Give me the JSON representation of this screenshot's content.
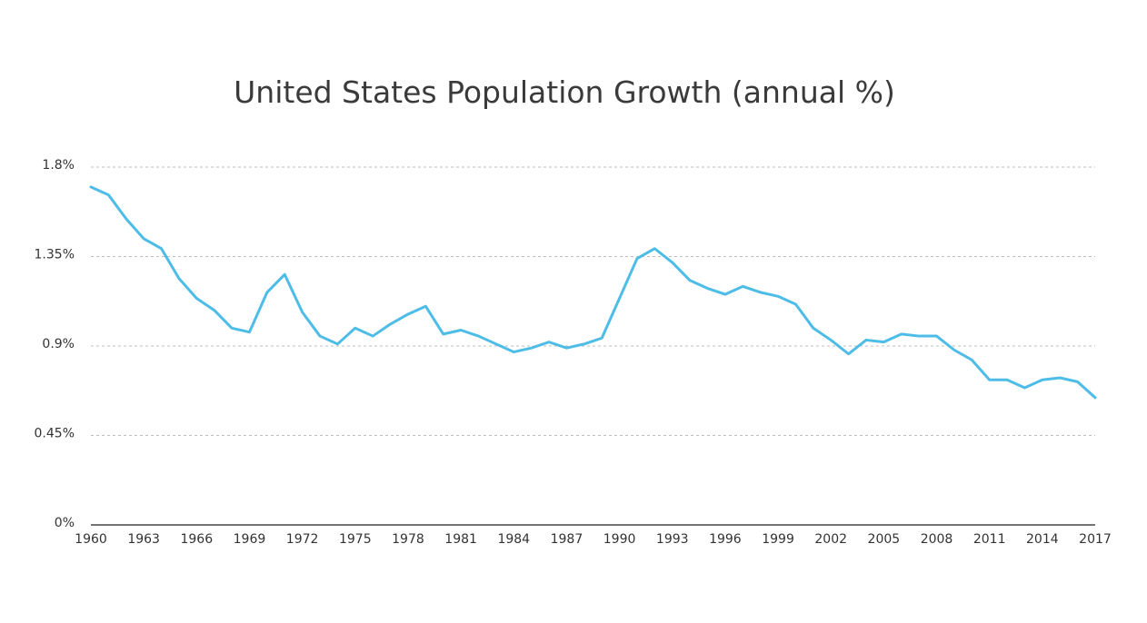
{
  "chart_data": {
    "type": "line",
    "title": "United States Population Growth (annual %)",
    "xlabel": "",
    "ylabel": "",
    "ylim": [
      0,
      1.8
    ],
    "xlim": [
      1960,
      2017
    ],
    "y_ticks": [
      "0%",
      "0.45%",
      "0.9%",
      "1.35%",
      "1.8%"
    ],
    "y_tick_values": [
      0,
      0.45,
      0.9,
      1.35,
      1.8
    ],
    "x_ticks": [
      "1960",
      "1963",
      "1966",
      "1969",
      "1972",
      "1975",
      "1978",
      "1981",
      "1984",
      "1987",
      "1990",
      "1993",
      "1996",
      "1999",
      "2002",
      "2005",
      "2008",
      "2011",
      "2014",
      "2017"
    ],
    "x_tick_values": [
      1960,
      1963,
      1966,
      1969,
      1972,
      1975,
      1978,
      1981,
      1984,
      1987,
      1990,
      1993,
      1996,
      1999,
      2002,
      2005,
      2008,
      2011,
      2014,
      2017
    ],
    "grid": "horizontal dashed",
    "legend": "none",
    "series": [
      {
        "color": "#4dbde8",
        "x": [
          1960,
          1961,
          1962,
          1963,
          1964,
          1965,
          1966,
          1967,
          1968,
          1969,
          1970,
          1971,
          1972,
          1973,
          1974,
          1975,
          1976,
          1977,
          1978,
          1979,
          1980,
          1981,
          1982,
          1983,
          1984,
          1985,
          1986,
          1987,
          1988,
          1989,
          1990,
          1991,
          1992,
          1993,
          1994,
          1995,
          1996,
          1997,
          1998,
          1999,
          2000,
          2001,
          2002,
          2003,
          2004,
          2005,
          2006,
          2007,
          2008,
          2009,
          2010,
          2011,
          2012,
          2013,
          2014,
          2015,
          2016,
          2017
        ],
        "values": [
          1.7,
          1.66,
          1.54,
          1.44,
          1.39,
          1.24,
          1.14,
          1.08,
          0.99,
          0.97,
          1.17,
          1.26,
          1.07,
          0.95,
          0.91,
          0.99,
          0.95,
          1.01,
          1.06,
          1.1,
          0.96,
          0.98,
          0.95,
          0.91,
          0.87,
          0.89,
          0.92,
          0.89,
          0.91,
          0.94,
          1.14,
          1.34,
          1.39,
          1.32,
          1.23,
          1.19,
          1.16,
          1.2,
          1.17,
          1.15,
          1.11,
          0.99,
          0.93,
          0.86,
          0.93,
          0.92,
          0.96,
          0.95,
          0.95,
          0.88,
          0.83,
          0.73,
          0.73,
          0.69,
          0.73,
          0.74,
          0.72,
          0.64
        ]
      }
    ]
  }
}
